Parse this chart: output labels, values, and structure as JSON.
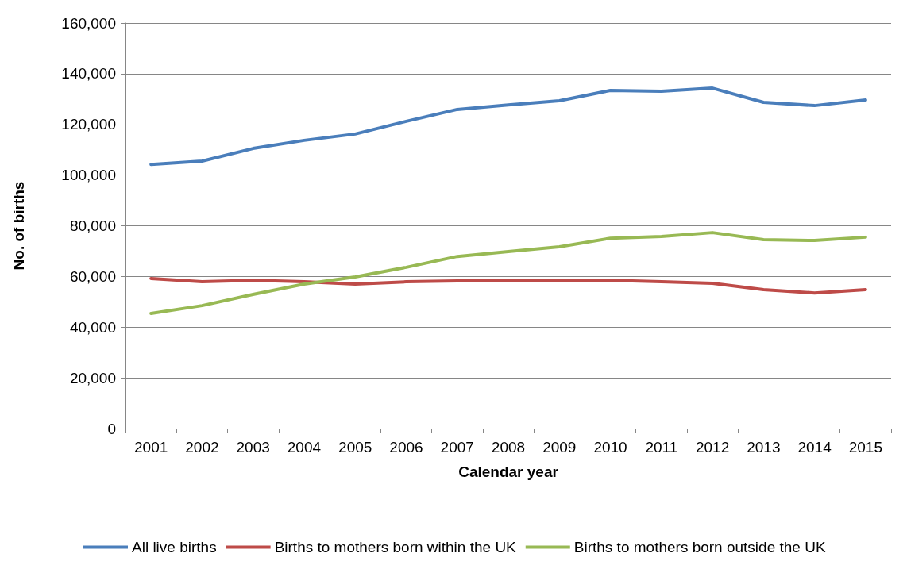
{
  "chart_data": {
    "type": "line",
    "xlabel": "Calendar year",
    "ylabel": "No. of births",
    "categories": [
      "2001",
      "2002",
      "2003",
      "2004",
      "2005",
      "2006",
      "2007",
      "2008",
      "2009",
      "2010",
      "2011",
      "2012",
      "2013",
      "2014",
      "2015"
    ],
    "series": [
      {
        "name": "All live births",
        "color": "#4a7ebb",
        "values": [
          104200,
          105500,
          110500,
          113700,
          116200,
          121200,
          125900,
          127700,
          129300,
          133400,
          133100,
          134300,
          128700,
          127400,
          129600
        ]
      },
      {
        "name": "Births to mothers born within the UK",
        "color": "#be4b48",
        "values": [
          59200,
          57900,
          58500,
          57900,
          57000,
          57900,
          58200,
          58200,
          58200,
          58500,
          57900,
          57300,
          54800,
          53500,
          54800
        ]
      },
      {
        "name": "Births to mothers born outside the UK",
        "color": "#98b954",
        "values": [
          45400,
          48500,
          52900,
          57000,
          59800,
          63600,
          67900,
          69800,
          71700,
          75100,
          75800,
          77300,
          74500,
          74200,
          75500
        ]
      }
    ],
    "ylim": [
      0,
      160000
    ],
    "yticks": [
      0,
      {
        "value": 20000,
        "label": "20,000"
      },
      {
        "value": 40000,
        "label": "40,000"
      },
      {
        "value": 60000,
        "label": "60,000"
      },
      {
        "value": 80000,
        "label": "80,000"
      },
      {
        "value": 100000,
        "label": "100,000"
      },
      {
        "value": 120000,
        "label": "120,000"
      },
      {
        "value": 140000,
        "label": "140,000"
      },
      {
        "value": 160000,
        "label": "160,000"
      }
    ],
    "grid": "y",
    "legend": "bottom",
    "marker": "none",
    "line_style": "solid"
  }
}
